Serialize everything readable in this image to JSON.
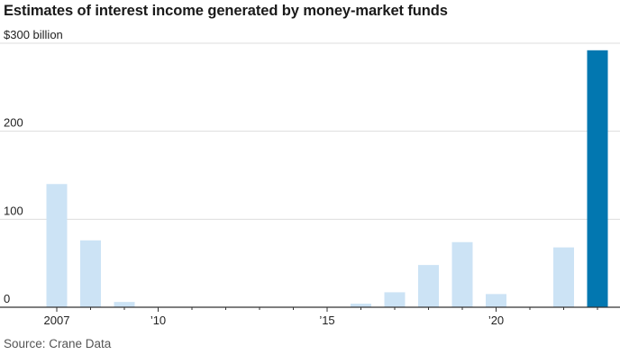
{
  "chart_data": {
    "type": "bar",
    "title": "Estimates of interest income generated by money-market funds",
    "source": "Source: Crane Data",
    "y_unit_label": "$300 billion",
    "ylim": [
      0,
      300
    ],
    "y_ticks": [
      {
        "value": 0,
        "label": "0"
      },
      {
        "value": 100,
        "label": "100"
      },
      {
        "value": 200,
        "label": "200"
      },
      {
        "value": 300,
        "label": "$300 billion"
      }
    ],
    "x_ticks": [
      {
        "year": 2007,
        "label": "2007"
      },
      {
        "year": 2010,
        "label": "’10"
      },
      {
        "year": 2015,
        "label": "’15"
      },
      {
        "year": 2020,
        "label": "’20"
      }
    ],
    "x_range": [
      2007,
      2023
    ],
    "grid": true,
    "categories": [
      2007,
      2008,
      2009,
      2010,
      2011,
      2012,
      2013,
      2014,
      2015,
      2016,
      2017,
      2018,
      2019,
      2020,
      2021,
      2022,
      2023
    ],
    "values": [
      140,
      76,
      6,
      0.4,
      0.4,
      0.4,
      0.4,
      0.4,
      0.4,
      4,
      17,
      48,
      74,
      15,
      0.4,
      68,
      292
    ],
    "colors": {
      "bar": "#cce3f5",
      "highlight_bar": "#0277b0",
      "grid": "#dddddd",
      "baseline": "#333333",
      "text": "#222222"
    },
    "highlight_category": 2023
  }
}
